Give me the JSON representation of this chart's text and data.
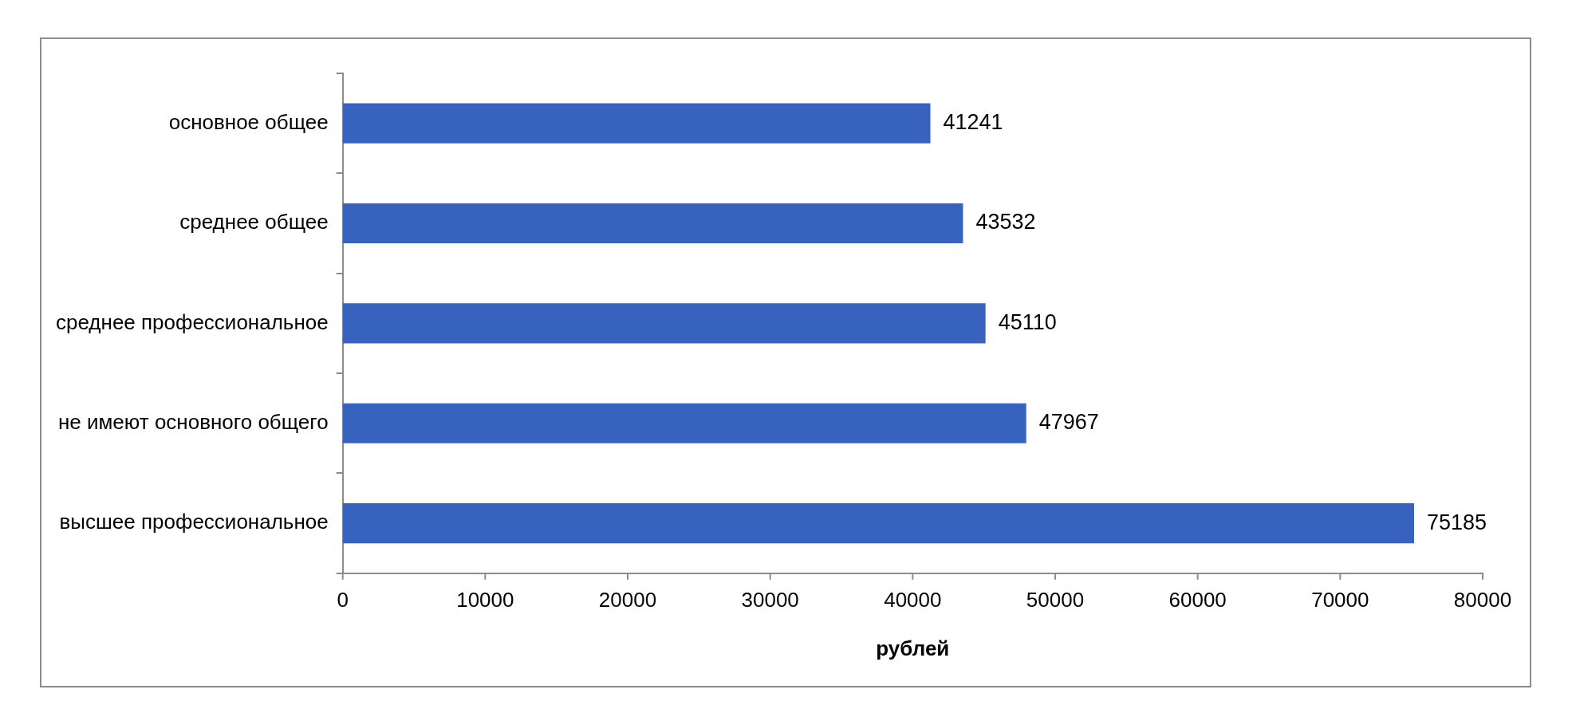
{
  "chart_data": {
    "type": "bar",
    "orientation": "horizontal",
    "xlabel": "рублей",
    "categories": [
      "основное общее",
      "среднее общее",
      "среднее профессиональное",
      "не имеют основного общего",
      "высшее профессиональное"
    ],
    "values": [
      41241,
      43532,
      45110,
      47967,
      75185
    ],
    "color": "#3762bd",
    "xlim": [
      0,
      80000
    ],
    "xticks": [
      0,
      10000,
      20000,
      30000,
      40000,
      50000,
      60000,
      70000,
      80000
    ],
    "data_labels": true,
    "grid": false
  }
}
